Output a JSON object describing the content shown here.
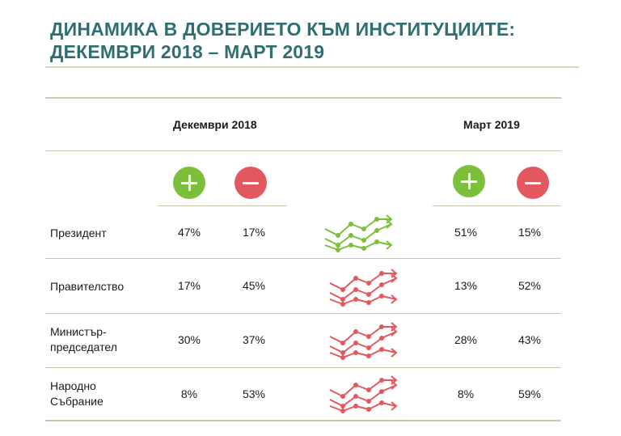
{
  "title_line1": "ДИНАМИКА В ДОВЕРИЕТО КЪМ ИНСТИТУЦИИТЕ:",
  "title_line2": "ДЕКЕМВРИ 2018 – МАРТ 2019",
  "colors": {
    "title": "#2f6f72",
    "positive": "#7bbf3b",
    "negative": "#e2585e",
    "rule": "#cdc9b0"
  },
  "icons": {
    "positive": "plus-icon",
    "negative": "minus-icon",
    "trend": "trend-arrows-icon"
  },
  "chart_data": {
    "type": "table",
    "title": "ДИНАМИКА В ДОВЕРИЕТО КЪМ ИНСТИТУЦИИТЕ: ДЕКЕМВРИ 2018 – МАРТ 2019",
    "periods": [
      "Декември 2018",
      "Март 2019"
    ],
    "columns": [
      "+",
      "−"
    ],
    "rows": [
      {
        "label": "Президент",
        "dec_2018": {
          "positive": "47%",
          "negative": "17%"
        },
        "mar_2019": {
          "positive": "51%",
          "negative": "15%"
        },
        "trend_color": "positive"
      },
      {
        "label": "Правителство",
        "dec_2018": {
          "positive": "17%",
          "negative": "45%"
        },
        "mar_2019": {
          "positive": "13%",
          "negative": "52%"
        },
        "trend_color": "negative"
      },
      {
        "label": "Министър-председател",
        "label_lines": [
          "Министър-",
          "председател"
        ],
        "dec_2018": {
          "positive": "30%",
          "negative": "37%"
        },
        "mar_2019": {
          "positive": "28%",
          "negative": "43%"
        },
        "trend_color": "negative"
      },
      {
        "label": "Народно Събрание",
        "label_lines": [
          "Народно",
          "Събрание"
        ],
        "dec_2018": {
          "positive": "8%",
          "negative": "53%"
        },
        "mar_2019": {
          "positive": "8%",
          "negative": "59%"
        },
        "trend_color": "negative"
      }
    ]
  }
}
